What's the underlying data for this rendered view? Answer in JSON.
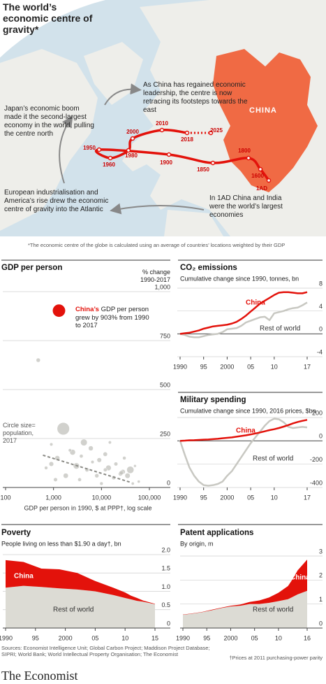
{
  "map": {
    "title": "The world’s economic centre of gravity*",
    "annotations": {
      "japan": "Japan’s economic boom made it the second-largest economy in the world, pulling the centre north",
      "china": "As China has regained economic leadership, the centre is now retracing its footsteps towards the east",
      "europe": "European industrialisation and America’s rise drew the economic centre of gravity into the Atlantic",
      "india": "In 1AD China and India were the world’s largest economies"
    },
    "region_label": "CHINA",
    "path_labels": [
      "1AD",
      "1600",
      "1800",
      "1850",
      "1900",
      "1950",
      "1960",
      "1980",
      "2000",
      "2010",
      "2018",
      "2025"
    ],
    "footnote": "*The economic centre of the globe is calculated using an average of countries’ locations weighted by their GDP"
  },
  "chart_data": [
    {
      "type": "scatter",
      "title": "GDP per person",
      "y_label": "% change 1990-2017",
      "x_label": "GDP per person in 1990, $ at PPP†, log scale",
      "size_note": "Circle size= population, 2017",
      "annotation_name": "China’s",
      "annotation": "GDP per person grew by 903% from 1990 to 2017",
      "xlog": true,
      "xlim": [
        100,
        100000
      ],
      "xticks": [
        100,
        {
          "value": 1000,
          "label": "1,000"
        },
        {
          "value": 10000,
          "label": "10,000"
        },
        {
          "value": 100000,
          "label": "100,000"
        }
      ],
      "ylim": [
        0,
        1000
      ],
      "yticks": [
        0,
        250,
        500,
        750,
        {
          "value": 1000,
          "label": "1,000"
        }
      ],
      "color": "#c2c2bc",
      "x": [
        480,
        1600,
        4300,
        2500,
        1200,
        900,
        3000,
        6000,
        9000,
        12000,
        20000,
        30000,
        40000,
        35000,
        28000,
        25000,
        26000,
        14000,
        8000,
        5000,
        3500,
        1800,
        1100,
        700,
        2200,
        15000,
        60000,
        45000,
        10000,
        6500,
        18000,
        3800,
        900,
        12000,
        50000
      ],
      "values": [
        650,
        300,
        230,
        180,
        150,
        120,
        110,
        200,
        140,
        170,
        120,
        150,
        90,
        60,
        80,
        70,
        75,
        100,
        60,
        90,
        40,
        60,
        40,
        100,
        190,
        230,
        30,
        20,
        20,
        130,
        50,
        160,
        220,
        90,
        110
      ],
      "sizes": [
        54,
        1340,
        264,
        160,
        105,
        80,
        210,
        95,
        80,
        66,
        38,
        25,
        325,
        127,
        82,
        66,
        60,
        145,
        50,
        45,
        30,
        110,
        40,
        20,
        15,
        12,
        8,
        10,
        20,
        17,
        45,
        30,
        15,
        33,
        5
      ],
      "highlight": {
        "x": 1300,
        "value": 903,
        "size": 1390,
        "color": "#e3120b"
      },
      "trend": {
        "x": [
          600,
          42000
        ],
        "values": [
          165,
          25
        ],
        "color": "#8a8a85"
      }
    },
    {
      "type": "line",
      "title": "CO₂ emissions",
      "subtitle": "Cumulative change since 1990, tonnes, bn",
      "xlim": [
        1990,
        2017
      ],
      "xticks": [
        1990,
        {
          "value": 1995,
          "label": "95"
        },
        2000,
        {
          "value": 2005,
          "label": "05"
        },
        {
          "value": 2010,
          "label": "10"
        },
        {
          "value": 2017,
          "label": "17"
        }
      ],
      "ylim": [
        -4,
        8
      ],
      "yticks": [
        -4,
        0,
        4,
        8
      ],
      "x": [
        1990,
        1991,
        1992,
        1993,
        1994,
        1995,
        1996,
        1997,
        1998,
        1999,
        2000,
        2001,
        2002,
        2003,
        2004,
        2005,
        2006,
        2007,
        2008,
        2009,
        2010,
        2011,
        2012,
        2013,
        2014,
        2015,
        2016,
        2017
      ],
      "series": [
        {
          "name": "China",
          "color": "#e3120b",
          "values": [
            0,
            0.1,
            0.2,
            0.4,
            0.6,
            0.9,
            1.1,
            1.3,
            1.4,
            1.5,
            1.6,
            1.8,
            2.1,
            2.6,
            3.2,
            3.9,
            4.6,
            5.3,
            5.8,
            6.3,
            6.8,
            7.2,
            7.3,
            7.3,
            7.2,
            7.1,
            7.1,
            7.3
          ]
        },
        {
          "name": "Rest of world",
          "color": "#c8c8c2",
          "values": [
            0,
            -0.2,
            -0.5,
            -0.6,
            -0.6,
            -0.4,
            -0.2,
            -0.1,
            0,
            0.3,
            0.8,
            0.9,
            1.0,
            1.4,
            2.0,
            2.3,
            2.6,
            2.9,
            3.0,
            2.4,
            3.6,
            3.8,
            4.0,
            4.3,
            4.5,
            4.6,
            5.0,
            5.5
          ]
        }
      ]
    },
    {
      "type": "line",
      "title": "Military spending",
      "subtitle": "Cumulative change since 1990, 2016 prices, $bn",
      "xlim": [
        1990,
        2017
      ],
      "xticks": [
        1990,
        {
          "value": 1995,
          "label": "95"
        },
        2000,
        {
          "value": 2005,
          "label": "05"
        },
        {
          "value": 2010,
          "label": "10"
        },
        {
          "value": 2017,
          "label": "17"
        }
      ],
      "ylim": [
        -400,
        200
      ],
      "yticks": [
        -400,
        -200,
        0,
        200
      ],
      "x": [
        1990,
        1991,
        1992,
        1993,
        1994,
        1995,
        1996,
        1997,
        1998,
        1999,
        2000,
        2001,
        2002,
        2003,
        2004,
        2005,
        2006,
        2007,
        2008,
        2009,
        2010,
        2011,
        2012,
        2013,
        2014,
        2015,
        2016,
        2017
      ],
      "series": [
        {
          "name": "China",
          "color": "#e3120b",
          "values": [
            0,
            2,
            5,
            6,
            8,
            10,
            12,
            15,
            18,
            22,
            26,
            30,
            36,
            42,
            48,
            55,
            63,
            72,
            82,
            92,
            100,
            110,
            122,
            135,
            150,
            162,
            172,
            180
          ]
        },
        {
          "name": "Rest of world",
          "color": "#c8c8c2",
          "values": [
            0,
            -120,
            -230,
            -300,
            -350,
            -380,
            -385,
            -380,
            -370,
            -350,
            -300,
            -260,
            -200,
            -140,
            -80,
            -20,
            30,
            80,
            130,
            170,
            190,
            185,
            160,
            120,
            110,
            115,
            120,
            115
          ]
        }
      ]
    },
    {
      "type": "area",
      "title": "Poverty",
      "subtitle": "People living on less than $1.90 a day†, bn",
      "xlim": [
        1990,
        2015
      ],
      "xticks": [
        1990,
        {
          "value": 1995,
          "label": "95"
        },
        2000,
        {
          "value": 2005,
          "label": "05"
        },
        {
          "value": 2010,
          "label": "10"
        },
        {
          "value": 2015,
          "label": "15"
        }
      ],
      "ylim": [
        0,
        2
      ],
      "yticks": [
        0,
        0.5,
        {
          "value": 1,
          "label": "1.0"
        },
        1.5,
        {
          "value": 2,
          "label": "2.0"
        }
      ],
      "x": [
        1990,
        1993,
        1996,
        1999,
        2002,
        2005,
        2008,
        2010,
        2011,
        2012,
        2013,
        2015
      ],
      "series": [
        {
          "name": "Rest of world",
          "color": "#dcdbd4",
          "values": [
            1.1,
            1.15,
            1.12,
            1.08,
            1.05,
            1.0,
            0.9,
            0.82,
            0.78,
            0.74,
            0.72,
            0.65
          ]
        },
        {
          "name": "China",
          "color": "#e3120b",
          "values": [
            0.75,
            0.65,
            0.5,
            0.52,
            0.45,
            0.28,
            0.2,
            0.15,
            0.1,
            0.08,
            0.03,
            0.01
          ]
        }
      ]
    },
    {
      "type": "area",
      "title": "Patent applications",
      "subtitle": "By origin, m",
      "xlim": [
        1990,
        2016
      ],
      "xticks": [
        1990,
        {
          "value": 1995,
          "label": "95"
        },
        2000,
        {
          "value": 2005,
          "label": "05"
        },
        {
          "value": 2010,
          "label": "10"
        },
        {
          "value": 2016,
          "label": "16"
        }
      ],
      "ylim": [
        0,
        3
      ],
      "yticks": [
        0,
        1,
        2,
        3
      ],
      "x": [
        1990,
        1992,
        1994,
        1996,
        1998,
        2000,
        2002,
        2004,
        2006,
        2008,
        2010,
        2012,
        2013,
        2014,
        2016
      ],
      "series": [
        {
          "name": "Rest of world",
          "color": "#dcdbd4",
          "values": [
            0.55,
            0.6,
            0.66,
            0.74,
            0.83,
            0.9,
            0.93,
            1.0,
            1.0,
            1.05,
            1.12,
            1.2,
            1.3,
            1.4,
            1.55
          ]
        },
        {
          "name": "China",
          "color": "#e3120b",
          "values": [
            0.01,
            0.01,
            0.01,
            0.02,
            0.02,
            0.03,
            0.05,
            0.09,
            0.15,
            0.22,
            0.35,
            0.55,
            0.75,
            1.0,
            1.3
          ]
        }
      ]
    }
  ],
  "footer": {
    "sources": "Sources: Economist Intelligence Unit; Global Carbon Project; Maddison Project Database; SIPRI; World Bank; World Intellectual Property Organisation; The Economist",
    "note": "†Prices at 2011 purchasing-power parity",
    "brand": "The Economist"
  }
}
